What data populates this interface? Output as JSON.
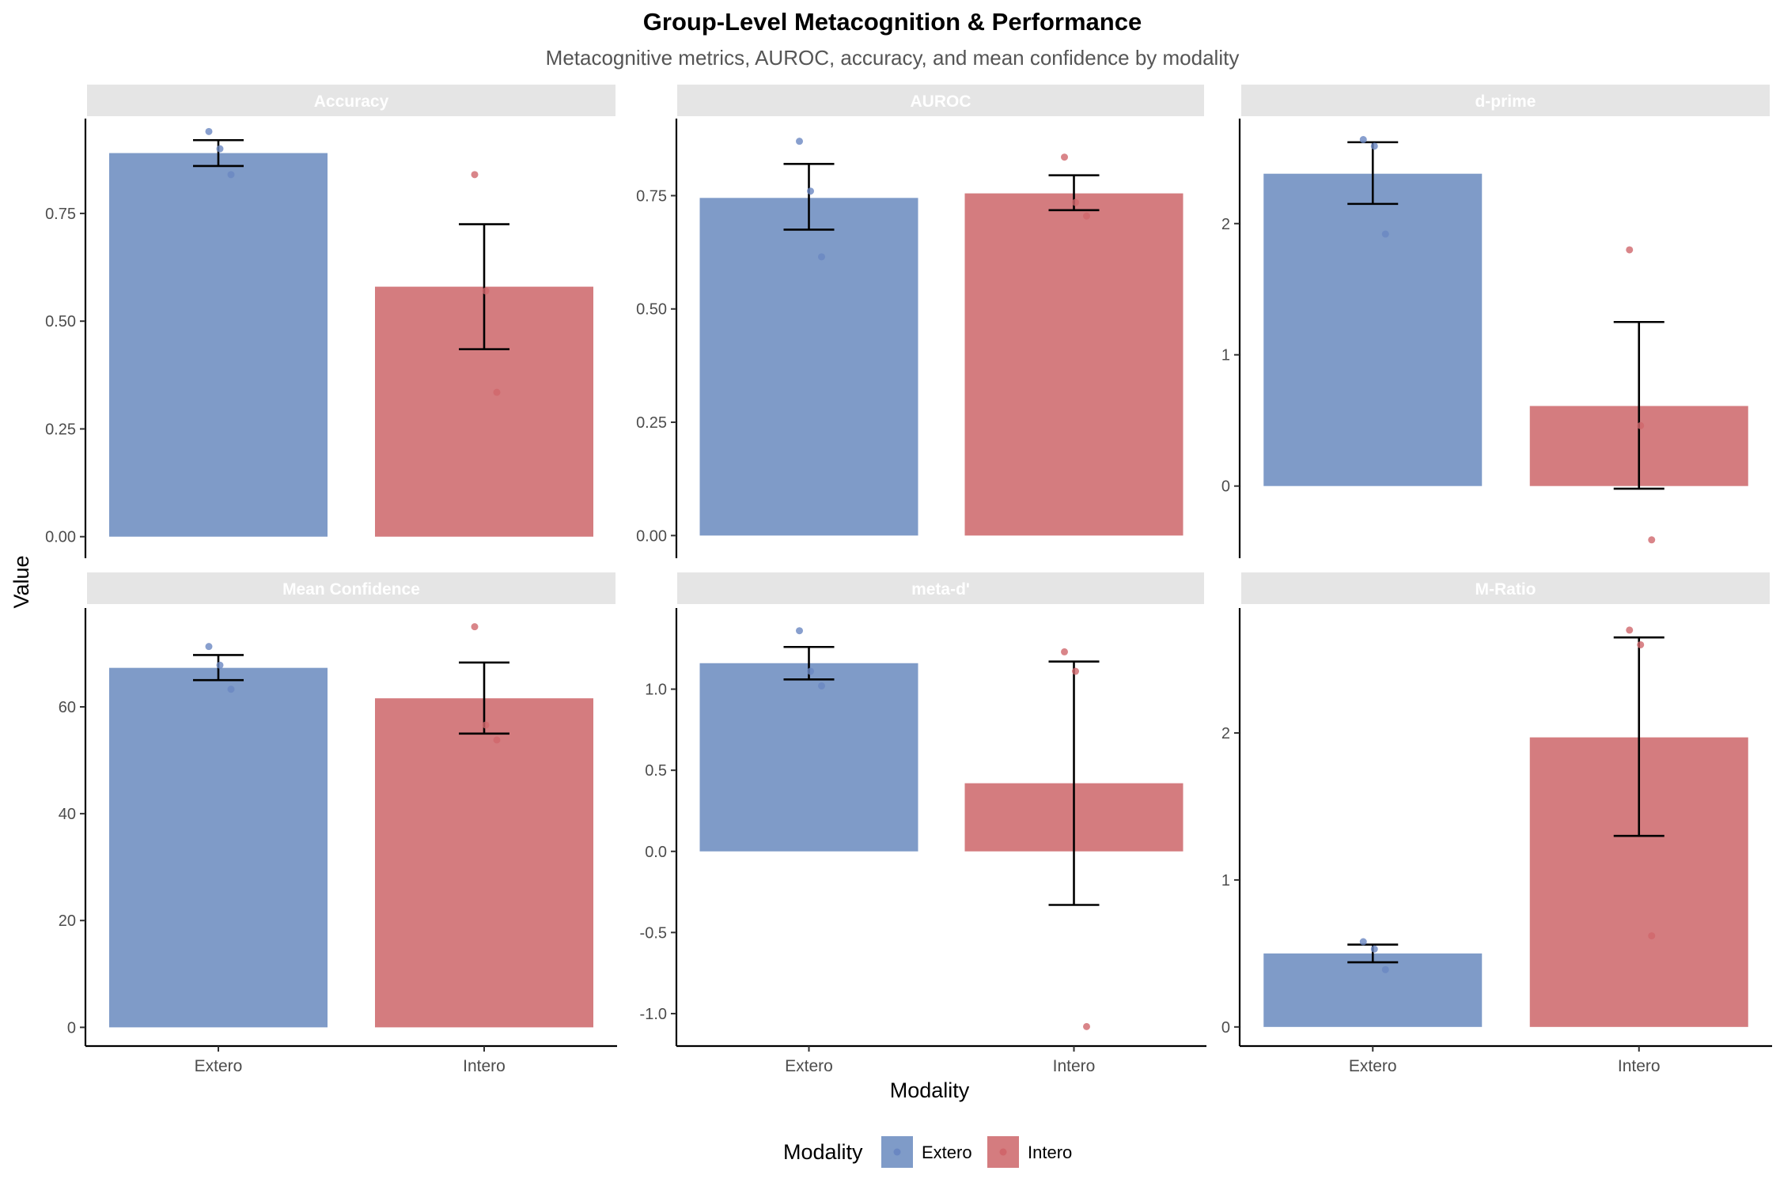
{
  "colors": {
    "Extero": "#7f9bc8",
    "Intero": "#d47c7f",
    "Extero_point": "#6a87c2",
    "Intero_point": "#d0666b",
    "strip_bg": "#e5e5e5",
    "strip_text": "#ffffff",
    "axis": "#000000",
    "tick_text": "#4d4d4d"
  },
  "chart_data": {
    "type": "bar",
    "title": "Group-Level Metacognition & Performance",
    "subtitle": "Metacognitive metrics, AUROC, accuracy, and mean confidence by modality",
    "xlabel": "Modality",
    "ylabel": "Value",
    "categories": [
      "Extero",
      "Intero"
    ],
    "legend": {
      "title": "Modality",
      "position": "bottom",
      "entries": [
        "Extero",
        "Intero"
      ]
    },
    "grid": false,
    "facets": [
      {
        "name": "Accuracy",
        "ylim": [
          -0.05,
          0.97
        ],
        "ticks": [
          0.0,
          0.25,
          0.5,
          0.75
        ],
        "tick_labels": [
          "0.00",
          "0.25",
          "0.50",
          "0.75"
        ],
        "bars": [
          {
            "category": "Extero",
            "mean": 0.89,
            "err_low": 0.86,
            "err_high": 0.92,
            "points": [
              0.94,
              0.9,
              0.84
            ]
          },
          {
            "category": "Intero",
            "mean": 0.58,
            "err_low": 0.435,
            "err_high": 0.725,
            "points": [
              0.84,
              0.57,
              0.335
            ]
          }
        ]
      },
      {
        "name": "AUROC",
        "ylim": [
          -0.05,
          0.92
        ],
        "ticks": [
          0.0,
          0.25,
          0.5,
          0.75
        ],
        "tick_labels": [
          "0.00",
          "0.25",
          "0.50",
          "0.75"
        ],
        "bars": [
          {
            "category": "Extero",
            "mean": 0.745,
            "err_low": 0.675,
            "err_high": 0.82,
            "points": [
              0.87,
              0.76,
              0.615
            ]
          },
          {
            "category": "Intero",
            "mean": 0.755,
            "err_low": 0.718,
            "err_high": 0.795,
            "points": [
              0.835,
              0.735,
              0.705
            ]
          }
        ]
      },
      {
        "name": "d-prime",
        "ylim": [
          -0.55,
          2.8
        ],
        "ticks": [
          0,
          1,
          2
        ],
        "tick_labels": [
          "0",
          "1",
          "2"
        ],
        "bars": [
          {
            "category": "Extero",
            "mean": 2.38,
            "err_low": 2.15,
            "err_high": 2.62,
            "points": [
              2.64,
              2.59,
              1.92
            ]
          },
          {
            "category": "Intero",
            "mean": 0.61,
            "err_low": -0.02,
            "err_high": 1.25,
            "points": [
              1.8,
              0.46,
              -0.41
            ]
          }
        ]
      },
      {
        "name": "Mean Confidence",
        "ylim": [
          -3.5,
          78.5
        ],
        "ticks": [
          0,
          20,
          40,
          60
        ],
        "tick_labels": [
          "0",
          "20",
          "40",
          "60"
        ],
        "bars": [
          {
            "category": "Extero",
            "mean": 67.3,
            "err_low": 65.0,
            "err_high": 69.7,
            "points": [
              71.3,
              67.8,
              63.3
            ]
          },
          {
            "category": "Intero",
            "mean": 61.6,
            "err_low": 55.0,
            "err_high": 68.3,
            "points": [
              75.0,
              56.6,
              53.8
            ]
          }
        ]
      },
      {
        "name": "meta-d'",
        "ylim": [
          -1.2,
          1.5
        ],
        "ticks": [
          -1.0,
          -0.5,
          0.0,
          0.5,
          1.0
        ],
        "tick_labels": [
          "-1.0",
          "-0.5",
          "0.0",
          "0.5",
          "1.0"
        ],
        "bars": [
          {
            "category": "Extero",
            "mean": 1.16,
            "err_low": 1.06,
            "err_high": 1.26,
            "points": [
              1.36,
              1.11,
              1.02
            ]
          },
          {
            "category": "Intero",
            "mean": 0.42,
            "err_low": -0.33,
            "err_high": 1.17,
            "points": [
              1.23,
              1.11,
              -1.08
            ]
          }
        ]
      },
      {
        "name": "M-Ratio",
        "ylim": [
          -0.13,
          2.85
        ],
        "ticks": [
          0,
          1,
          2
        ],
        "tick_labels": [
          "0",
          "1",
          "2"
        ],
        "bars": [
          {
            "category": "Extero",
            "mean": 0.5,
            "err_low": 0.44,
            "err_high": 0.56,
            "points": [
              0.58,
              0.53,
              0.39
            ]
          },
          {
            "category": "Intero",
            "mean": 1.97,
            "err_low": 1.3,
            "err_high": 2.65,
            "points": [
              2.7,
              2.6,
              0.62
            ]
          }
        ]
      }
    ]
  }
}
